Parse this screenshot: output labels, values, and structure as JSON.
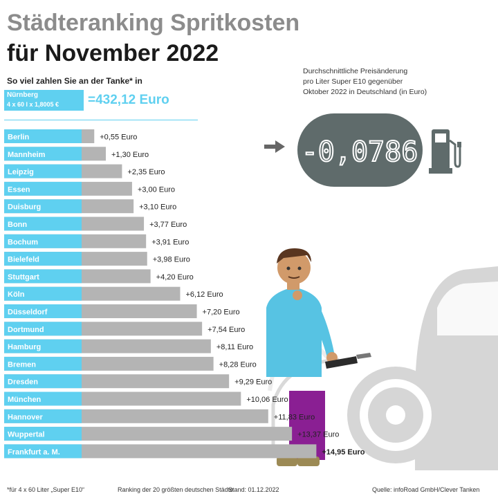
{
  "title_line1": "Städteranking Spritkosten",
  "title_line2": "für November 2022",
  "subtitle": "So viel zahlen Sie an der Tanke* in",
  "highlight": {
    "city": "Nürnberg",
    "formula": "4 x 60 l x 1,8005 €",
    "total": "=432,12 Euro"
  },
  "info": {
    "line1": "Durchschnittliche Preisänderung",
    "line2": "pro Liter Super E10 gegenüber",
    "line3": "Oktober 2022 in Deutschland (in Euro)",
    "value": "-0,0786"
  },
  "chart_data": {
    "type": "bar",
    "orientation": "horizontal",
    "categories": [
      "Berlin",
      "Mannheim",
      "Leipzig",
      "Essen",
      "Duisburg",
      "Bonn",
      "Bochum",
      "Bielefeld",
      "Stuttgart",
      "Köln",
      "Düsseldorf",
      "Dortmund",
      "Hamburg",
      "Bremen",
      "Dresden",
      "München",
      "Hannover",
      "Wuppertal",
      "Frankfurt a. M."
    ],
    "values": [
      0.55,
      1.3,
      2.35,
      3.0,
      3.1,
      3.77,
      3.91,
      3.98,
      4.2,
      6.12,
      7.2,
      7.54,
      8.11,
      8.28,
      9.29,
      10.06,
      11.83,
      13.37,
      14.95
    ],
    "labels": [
      "+0,55 Euro",
      "+1,30 Euro",
      "+2,35 Euro",
      "+3,00 Euro",
      "+3,10 Euro",
      "+3,77 Euro",
      "+3,91 Euro",
      "+3,98 Euro",
      "+4,20 Euro",
      "+6,12 Euro",
      "+7,20 Euro",
      "+7,54 Euro",
      "+8,11 Euro",
      "+8,28 Euro",
      "+9,29 Euro",
      "+10,06 Euro",
      "+11,83 Euro",
      "+13,37 Euro",
      "+14,95 Euro"
    ],
    "highlight_last": true,
    "colors": {
      "label_bg": "#5fd0f0",
      "bar": "#b4b4b4",
      "text": "#222222"
    }
  },
  "footer": {
    "note": "*für 4 x 60 Liter „Super E10“",
    "ranking": "Ranking der 20 größten deutschen Städte",
    "stand": "Stand: 01.12.2022",
    "source": "Quelle: infoRoad GmbH/Clever Tanken"
  }
}
